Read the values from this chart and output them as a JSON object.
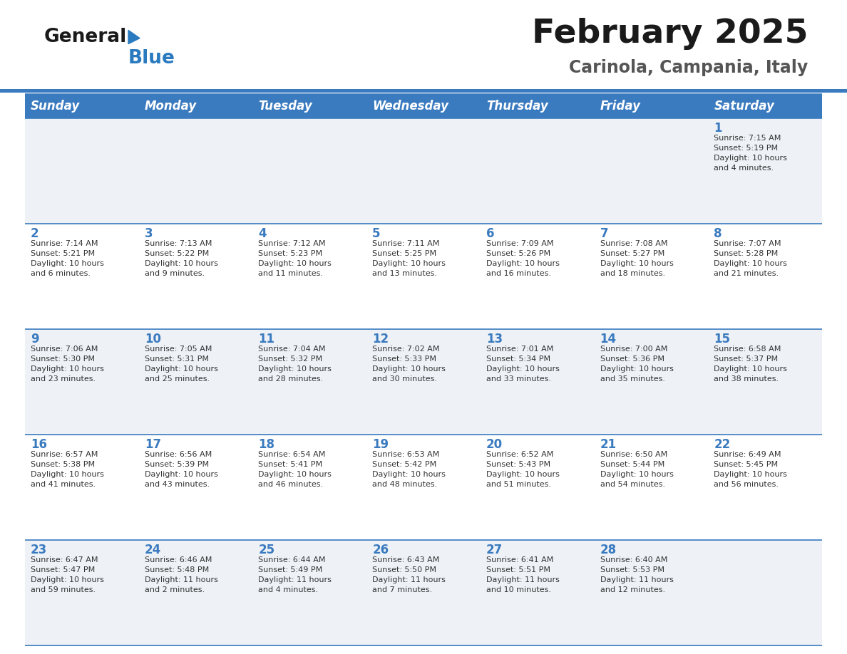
{
  "title": "February 2025",
  "subtitle": "Carinola, Campania, Italy",
  "days_of_week": [
    "Sunday",
    "Monday",
    "Tuesday",
    "Wednesday",
    "Thursday",
    "Friday",
    "Saturday"
  ],
  "header_bg": "#3a7abf",
  "header_text": "#ffffff",
  "row_bg_odd": "#eef2f7",
  "row_bg_even": "#ffffff",
  "cell_border": "#3a7abf",
  "day_number_color": "#3a7abf",
  "info_text_color": "#333333",
  "title_color": "#1a1a1a",
  "subtitle_color": "#555555",
  "logo_general_color": "#1a1a1a",
  "logo_blue_color": "#2a7abf",
  "logo_triangle_color": "#2a7abf",
  "calendar_data": [
    [
      {
        "day": null,
        "info": ""
      },
      {
        "day": null,
        "info": ""
      },
      {
        "day": null,
        "info": ""
      },
      {
        "day": null,
        "info": ""
      },
      {
        "day": null,
        "info": ""
      },
      {
        "day": null,
        "info": ""
      },
      {
        "day": 1,
        "info": "Sunrise: 7:15 AM\nSunset: 5:19 PM\nDaylight: 10 hours\nand 4 minutes."
      }
    ],
    [
      {
        "day": 2,
        "info": "Sunrise: 7:14 AM\nSunset: 5:21 PM\nDaylight: 10 hours\nand 6 minutes."
      },
      {
        "day": 3,
        "info": "Sunrise: 7:13 AM\nSunset: 5:22 PM\nDaylight: 10 hours\nand 9 minutes."
      },
      {
        "day": 4,
        "info": "Sunrise: 7:12 AM\nSunset: 5:23 PM\nDaylight: 10 hours\nand 11 minutes."
      },
      {
        "day": 5,
        "info": "Sunrise: 7:11 AM\nSunset: 5:25 PM\nDaylight: 10 hours\nand 13 minutes."
      },
      {
        "day": 6,
        "info": "Sunrise: 7:09 AM\nSunset: 5:26 PM\nDaylight: 10 hours\nand 16 minutes."
      },
      {
        "day": 7,
        "info": "Sunrise: 7:08 AM\nSunset: 5:27 PM\nDaylight: 10 hours\nand 18 minutes."
      },
      {
        "day": 8,
        "info": "Sunrise: 7:07 AM\nSunset: 5:28 PM\nDaylight: 10 hours\nand 21 minutes."
      }
    ],
    [
      {
        "day": 9,
        "info": "Sunrise: 7:06 AM\nSunset: 5:30 PM\nDaylight: 10 hours\nand 23 minutes."
      },
      {
        "day": 10,
        "info": "Sunrise: 7:05 AM\nSunset: 5:31 PM\nDaylight: 10 hours\nand 25 minutes."
      },
      {
        "day": 11,
        "info": "Sunrise: 7:04 AM\nSunset: 5:32 PM\nDaylight: 10 hours\nand 28 minutes."
      },
      {
        "day": 12,
        "info": "Sunrise: 7:02 AM\nSunset: 5:33 PM\nDaylight: 10 hours\nand 30 minutes."
      },
      {
        "day": 13,
        "info": "Sunrise: 7:01 AM\nSunset: 5:34 PM\nDaylight: 10 hours\nand 33 minutes."
      },
      {
        "day": 14,
        "info": "Sunrise: 7:00 AM\nSunset: 5:36 PM\nDaylight: 10 hours\nand 35 minutes."
      },
      {
        "day": 15,
        "info": "Sunrise: 6:58 AM\nSunset: 5:37 PM\nDaylight: 10 hours\nand 38 minutes."
      }
    ],
    [
      {
        "day": 16,
        "info": "Sunrise: 6:57 AM\nSunset: 5:38 PM\nDaylight: 10 hours\nand 41 minutes."
      },
      {
        "day": 17,
        "info": "Sunrise: 6:56 AM\nSunset: 5:39 PM\nDaylight: 10 hours\nand 43 minutes."
      },
      {
        "day": 18,
        "info": "Sunrise: 6:54 AM\nSunset: 5:41 PM\nDaylight: 10 hours\nand 46 minutes."
      },
      {
        "day": 19,
        "info": "Sunrise: 6:53 AM\nSunset: 5:42 PM\nDaylight: 10 hours\nand 48 minutes."
      },
      {
        "day": 20,
        "info": "Sunrise: 6:52 AM\nSunset: 5:43 PM\nDaylight: 10 hours\nand 51 minutes."
      },
      {
        "day": 21,
        "info": "Sunrise: 6:50 AM\nSunset: 5:44 PM\nDaylight: 10 hours\nand 54 minutes."
      },
      {
        "day": 22,
        "info": "Sunrise: 6:49 AM\nSunset: 5:45 PM\nDaylight: 10 hours\nand 56 minutes."
      }
    ],
    [
      {
        "day": 23,
        "info": "Sunrise: 6:47 AM\nSunset: 5:47 PM\nDaylight: 10 hours\nand 59 minutes."
      },
      {
        "day": 24,
        "info": "Sunrise: 6:46 AM\nSunset: 5:48 PM\nDaylight: 11 hours\nand 2 minutes."
      },
      {
        "day": 25,
        "info": "Sunrise: 6:44 AM\nSunset: 5:49 PM\nDaylight: 11 hours\nand 4 minutes."
      },
      {
        "day": 26,
        "info": "Sunrise: 6:43 AM\nSunset: 5:50 PM\nDaylight: 11 hours\nand 7 minutes."
      },
      {
        "day": 27,
        "info": "Sunrise: 6:41 AM\nSunset: 5:51 PM\nDaylight: 11 hours\nand 10 minutes."
      },
      {
        "day": 28,
        "info": "Sunrise: 6:40 AM\nSunset: 5:53 PM\nDaylight: 11 hours\nand 12 minutes."
      },
      {
        "day": null,
        "info": ""
      }
    ]
  ]
}
